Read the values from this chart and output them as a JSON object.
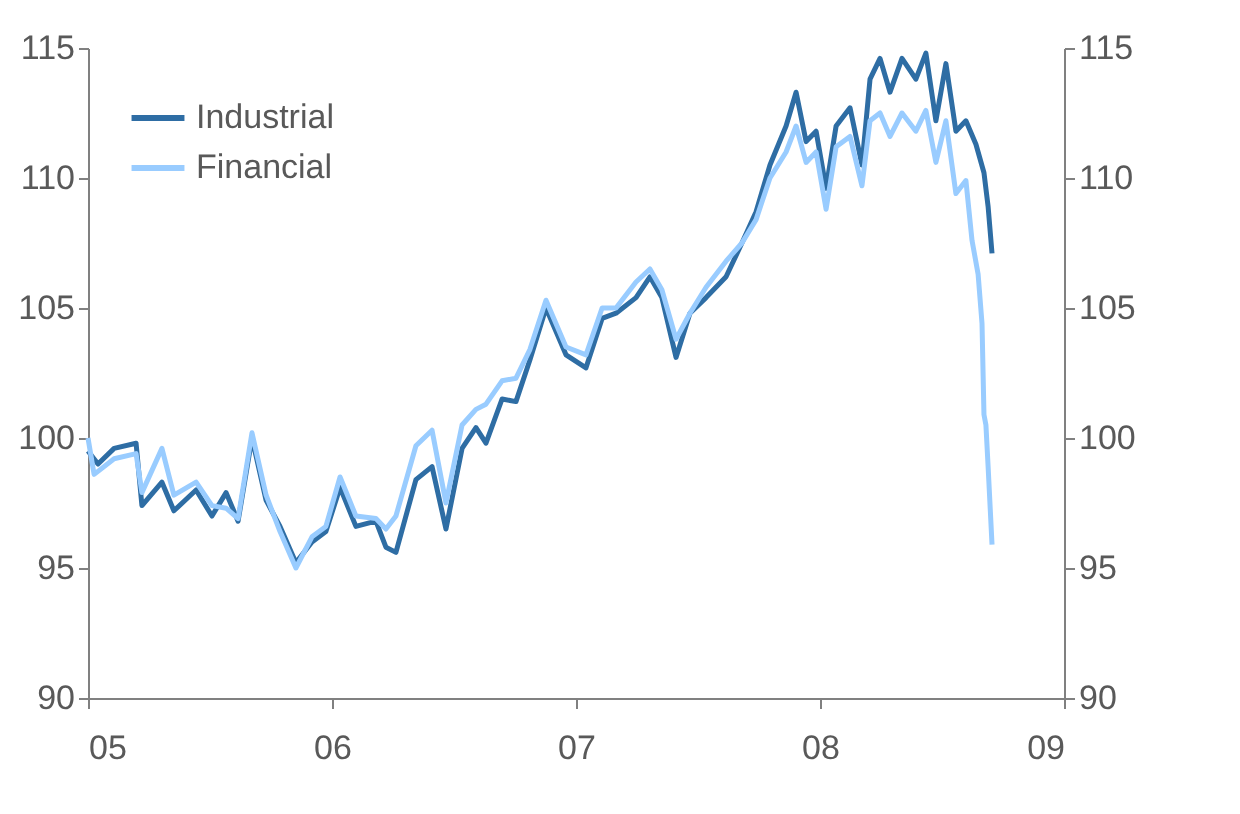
{
  "chart_data": {
    "type": "line",
    "xlim": [
      2005,
      2009
    ],
    "xticks": [
      {
        "value": 2005,
        "label": "05"
      },
      {
        "value": 2006,
        "label": "06"
      },
      {
        "value": 2007,
        "label": "07"
      },
      {
        "value": 2008,
        "label": "08"
      },
      {
        "value": 2009,
        "label": "09"
      }
    ],
    "ylim": [
      90,
      115
    ],
    "yticks": [
      90,
      95,
      100,
      105,
      110,
      115
    ],
    "y2lim": [
      90,
      115
    ],
    "y2ticks": [
      90,
      95,
      100,
      105,
      110,
      115
    ],
    "grid": false,
    "legend": "top left",
    "marker": "none",
    "line_style": "solid",
    "series": [
      {
        "name": "Industrial",
        "color": "#2e6da4",
        "x": [
          2005.0,
          2005.041,
          2005.107,
          2005.197,
          2005.221,
          2005.303,
          2005.352,
          2005.443,
          2005.508,
          2005.566,
          2005.615,
          2005.672,
          2005.73,
          2005.787,
          2005.852,
          2005.918,
          2005.975,
          2006.033,
          2006.098,
          2006.18,
          2006.221,
          2006.262,
          2006.344,
          2006.41,
          2006.467,
          2006.533,
          2006.59,
          2006.631,
          2006.697,
          2006.754,
          2006.811,
          2006.877,
          2006.959,
          2007.041,
          2007.107,
          2007.164,
          2007.246,
          2007.303,
          2007.352,
          2007.41,
          2007.467,
          2007.533,
          2007.615,
          2007.68,
          2007.738,
          2007.795,
          2007.861,
          2007.902,
          2007.943,
          2007.984,
          2008.025,
          2008.066,
          2008.123,
          2008.172,
          2008.205,
          2008.246,
          2008.287,
          2008.336,
          2008.393,
          2008.434,
          2008.475,
          2008.516,
          2008.557,
          2008.598,
          2008.639,
          2008.672,
          2008.689,
          2008.705
        ],
        "values": [
          99.5,
          99,
          99.6,
          99.8,
          97.4,
          98.3,
          97.2,
          98,
          97,
          97.9,
          96.8,
          100,
          97.6,
          96.6,
          95.2,
          96,
          96.4,
          98.1,
          96.6,
          96.8,
          95.8,
          95.6,
          98.4,
          98.9,
          96.5,
          99.6,
          100.4,
          99.8,
          101.5,
          101.4,
          103,
          105,
          103.2,
          102.7,
          104.6,
          104.8,
          105.4,
          106.2,
          105.4,
          103.1,
          104.8,
          105.4,
          106.2,
          107.5,
          108.7,
          110.5,
          112,
          113.3,
          111.4,
          111.8,
          109.6,
          112,
          112.7,
          110.5,
          113.8,
          114.6,
          113.3,
          114.6,
          113.8,
          114.8,
          112.2,
          114.4,
          111.8,
          112.2,
          111.3,
          110.2,
          108.9,
          107.1
        ]
      },
      {
        "name": "Financial",
        "color": "#99ccff",
        "x": [
          2005.0,
          2005.025,
          2005.107,
          2005.197,
          2005.221,
          2005.303,
          2005.352,
          2005.443,
          2005.508,
          2005.566,
          2005.615,
          2005.672,
          2005.73,
          2005.787,
          2005.852,
          2005.918,
          2005.975,
          2006.033,
          2006.098,
          2006.18,
          2006.221,
          2006.262,
          2006.344,
          2006.41,
          2006.467,
          2006.533,
          2006.59,
          2006.631,
          2006.697,
          2006.754,
          2006.811,
          2006.877,
          2006.959,
          2007.041,
          2007.107,
          2007.164,
          2007.246,
          2007.303,
          2007.352,
          2007.41,
          2007.467,
          2007.533,
          2007.615,
          2007.68,
          2007.738,
          2007.795,
          2007.861,
          2007.902,
          2007.943,
          2007.984,
          2008.025,
          2008.066,
          2008.123,
          2008.172,
          2008.205,
          2008.246,
          2008.287,
          2008.336,
          2008.393,
          2008.434,
          2008.475,
          2008.516,
          2008.557,
          2008.598,
          2008.623,
          2008.648,
          2008.664,
          2008.672,
          2008.68,
          2008.689,
          2008.705
        ],
        "values": [
          100,
          98.6,
          99.2,
          99.4,
          97.9,
          99.6,
          97.8,
          98.3,
          97.4,
          97.3,
          96.9,
          100.2,
          97.8,
          96.4,
          95,
          96.2,
          96.6,
          98.5,
          97,
          96.9,
          96.5,
          97,
          99.7,
          100.3,
          97.5,
          100.5,
          101.1,
          101.3,
          102.2,
          102.3,
          103.4,
          105.3,
          103.5,
          103.2,
          105,
          105,
          106,
          106.5,
          105.7,
          103.8,
          104.8,
          105.8,
          106.8,
          107.5,
          108.4,
          110,
          111,
          112,
          110.6,
          111,
          108.8,
          111.2,
          111.6,
          109.7,
          112.2,
          112.5,
          111.6,
          112.5,
          111.8,
          112.6,
          110.6,
          112.2,
          109.4,
          109.9,
          107.6,
          106.3,
          104.4,
          100.9,
          100.5,
          98.9,
          95.9
        ]
      }
    ]
  }
}
